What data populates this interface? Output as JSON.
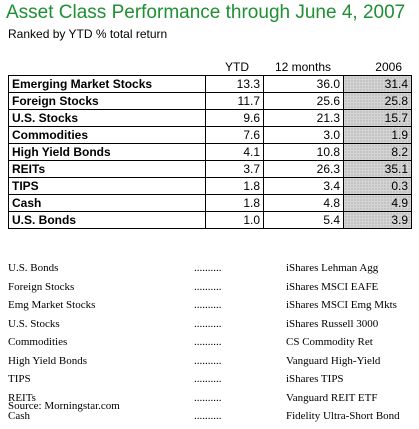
{
  "title": "Asset Class Performance through June 4, 2007",
  "subtitle": "Ranked by YTD % total return",
  "headers": {
    "ytd": "YTD",
    "m12": "12 months",
    "y2006": "2006"
  },
  "rows": [
    {
      "name": "Emerging Market Stocks",
      "ytd": "13.3",
      "m12": "36.0",
      "y2006": "31.4"
    },
    {
      "name": "Foreign Stocks",
      "ytd": "11.7",
      "m12": "25.6",
      "y2006": "25.8"
    },
    {
      "name": "U.S. Stocks",
      "ytd": "9.6",
      "m12": "21.3",
      "y2006": "15.7"
    },
    {
      "name": "Commodities",
      "ytd": "7.6",
      "m12": "3.0",
      "y2006": "1.9"
    },
    {
      "name": "High Yield Bonds",
      "ytd": "4.1",
      "m12": "10.8",
      "y2006": "8.2"
    },
    {
      "name": "REITs",
      "ytd": "3.7",
      "m12": "26.3",
      "y2006": "35.1"
    },
    {
      "name": "TIPS",
      "ytd": "1.8",
      "m12": "3.4",
      "y2006": "0.3"
    },
    {
      "name": "Cash",
      "ytd": "1.8",
      "m12": "4.8",
      "y2006": "4.9"
    },
    {
      "name": "U.S. Bonds",
      "ytd": "1.0",
      "m12": "5.4",
      "y2006": "3.9"
    }
  ],
  "funds": [
    {
      "asset": "U.S. Bonds",
      "dots": "..........",
      "fund": "iShares Lehman Agg"
    },
    {
      "asset": "Foreign Stocks",
      "dots": "..........",
      "fund": "iShares MSCI EAFE"
    },
    {
      "asset": "Emg Market Stocks",
      "dots": "..........",
      "fund": "iShares MSCI Emg Mkts"
    },
    {
      "asset": "U.S. Stocks",
      "dots": "..........",
      "fund": "iShares Russell 3000"
    },
    {
      "asset": "Commodities",
      "dots": "..........",
      "fund": "CS Commodity Ret"
    },
    {
      "asset": "High Yield Bonds",
      "dots": "..........",
      "fund": "Vanguard High-Yield"
    },
    {
      "asset": "TIPS",
      "dots": "..........",
      "fund": "iShares TIPS"
    },
    {
      "asset": "REITs",
      "dots": "..........",
      "fund": "Vanguard REIT ETF"
    },
    {
      "asset": "Cash",
      "dots": "..........",
      "fund": "Fidelity Ultra-Short Bond"
    }
  ],
  "source": "Source: Morningstar.com",
  "colors": {
    "title": "#1e8f32",
    "shade": "#d4d4d4"
  }
}
